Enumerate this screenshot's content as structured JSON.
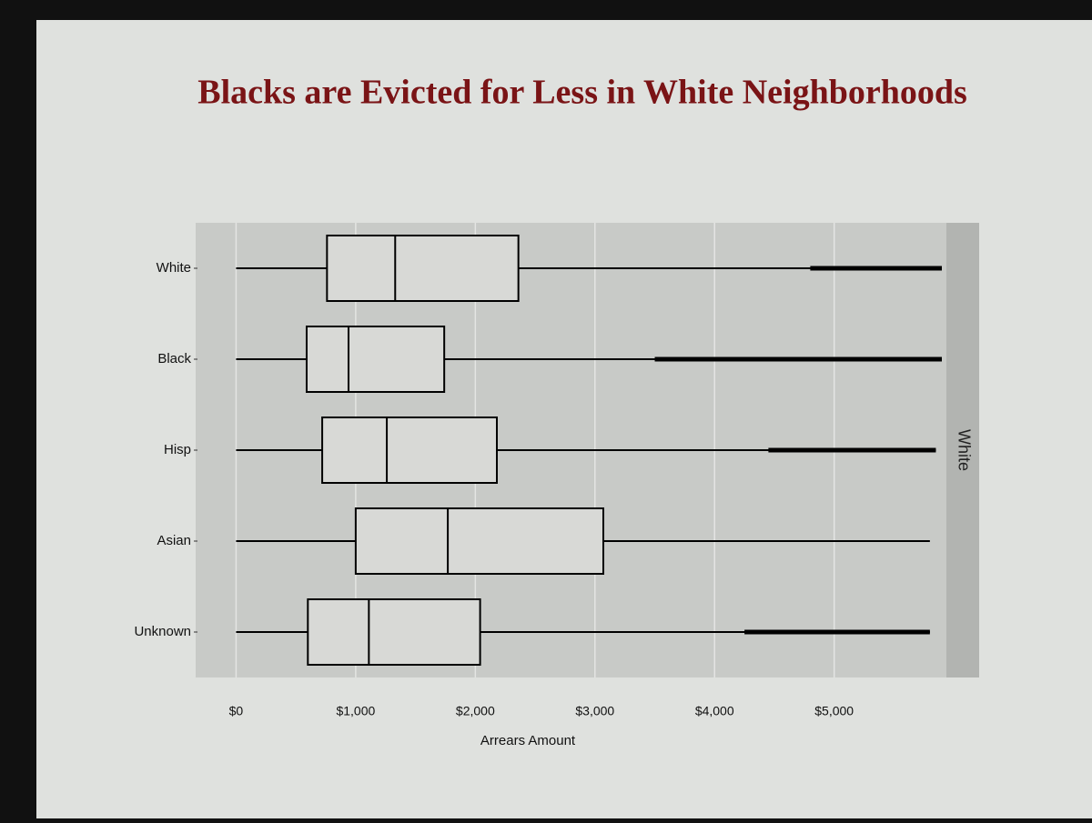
{
  "chart_data": {
    "type": "boxplot",
    "title": "Blacks are Evicted for Less in White Neighborhoods",
    "x_label": "Arrears Amount",
    "facet_label": "White",
    "categories": [
      "White",
      "Black",
      "Hisp",
      "Asian",
      "Unknown"
    ],
    "min": [
      0,
      0,
      0,
      0,
      0
    ],
    "q1": [
      760,
      590,
      720,
      1000,
      600
    ],
    "median": [
      1330,
      940,
      1260,
      1770,
      1110
    ],
    "q3": [
      2360,
      1740,
      2180,
      3070,
      2040
    ],
    "max": [
      5900,
      5900,
      5850,
      5800,
      5800
    ],
    "outliers_from": [
      4800,
      3500,
      4450,
      null,
      4250
    ],
    "color": "#000000",
    "xlim": [
      -300,
      5900
    ],
    "xticks": [
      {
        "value": 0,
        "label": "$0"
      },
      {
        "value": 1000,
        "label": "$1,000"
      },
      {
        "value": 2000,
        "label": "$2,000"
      },
      {
        "value": 3000,
        "label": "$3,000"
      },
      {
        "value": 4000,
        "label": "$4,000"
      },
      {
        "value": 5000,
        "label": "$5,000"
      }
    ],
    "grid": true
  }
}
